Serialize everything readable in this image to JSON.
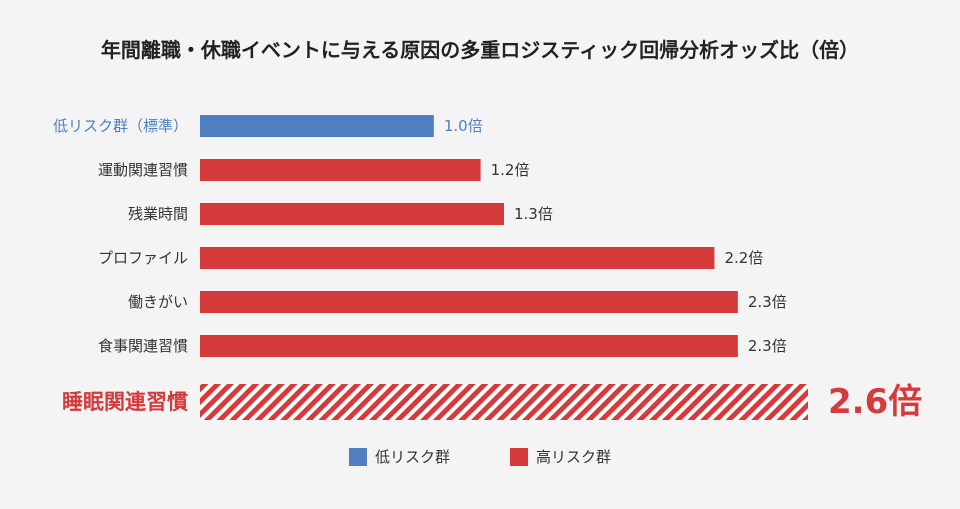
{
  "chart_data": {
    "type": "bar",
    "orientation": "horizontal",
    "title": "年間離職・休職イベントに与える原因の多重ロジスティック回帰分析オッズ比（倍）",
    "categories": [
      "低リスク群（標準）",
      "運動関連習慣",
      "残業時間",
      "プロファイル",
      "働きがい",
      "食事関連習慣",
      "睡眠関連習慣"
    ],
    "values": [
      1.0,
      1.2,
      1.3,
      2.2,
      2.3,
      2.3,
      2.6
    ],
    "value_labels": [
      "1.0倍",
      "1.2倍",
      "1.3倍",
      "2.2倍",
      "2.3倍",
      "2.3倍",
      "2.6倍"
    ],
    "groups": [
      "low",
      "high",
      "high",
      "high",
      "high",
      "high",
      "high"
    ],
    "highlight_index": 6,
    "xlim": [
      0,
      2.6
    ],
    "grid": false,
    "legend": {
      "placement": "bottom",
      "entries": [
        {
          "key": "low",
          "label": "低リスク群",
          "color": "#4f7fc0"
        },
        {
          "key": "high",
          "label": "高リスク群",
          "color": "#d63b3b"
        }
      ]
    },
    "colors": {
      "low": "#4f7fc0",
      "high": "#d63b3b",
      "label": "#333333",
      "highlight": "#d63b3b"
    }
  }
}
